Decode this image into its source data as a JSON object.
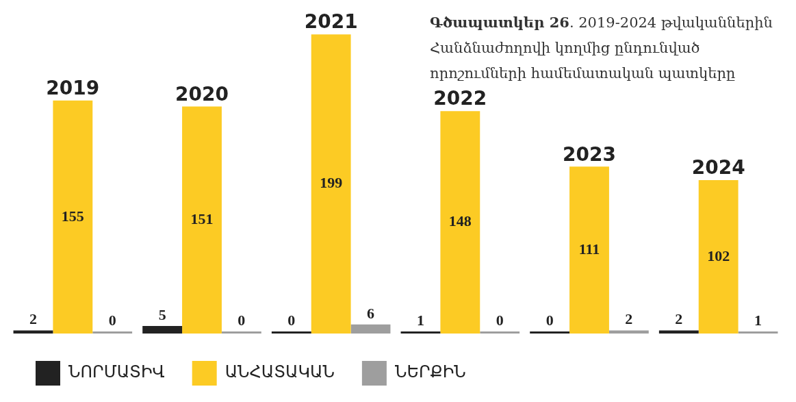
{
  "chart_data": {
    "type": "bar",
    "title": "Գծապատկեր 26. 2019-2024 թվականներին Հանձնաժողովի կողմից ընդունված որոշումների համեմատական պատկերը",
    "categories": [
      "2019",
      "2020",
      "2021",
      "2022",
      "2023",
      "2024"
    ],
    "series": [
      {
        "name": "ՆՈՐՄԱՏԻՎ",
        "color": "#222222",
        "values": [
          2,
          5,
          0,
          1,
          0,
          2
        ]
      },
      {
        "name": "ԱՆՀԱՏԱԿԱՆ",
        "color": "#fccb24",
        "values": [
          155,
          151,
          199,
          148,
          111,
          102
        ]
      },
      {
        "name": "ՆԵՐՔԻՆ",
        "color": "#9e9e9e",
        "values": [
          0,
          0,
          6,
          0,
          2,
          1
        ]
      }
    ],
    "data_labels": true,
    "legend": "bottom left"
  }
}
